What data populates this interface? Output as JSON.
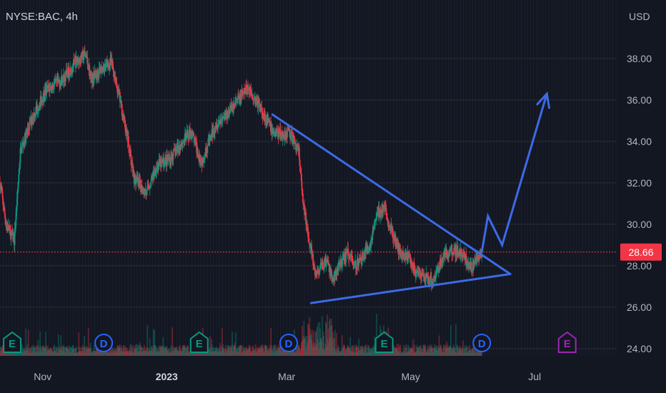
{
  "header": {
    "symbol": "NYSE:BAC, 4h",
    "currency": "USD"
  },
  "price_badge": {
    "value": "28.66",
    "color": "#f23645"
  },
  "chart_data": {
    "type": "candlestick",
    "symbol": "NYSE:BAC",
    "interval": "4h",
    "currency": "USD",
    "y_ticks": [
      24,
      26,
      28,
      30,
      32,
      34,
      36,
      38
    ],
    "ylim": [
      23.6,
      40.0
    ],
    "x_ticks": [
      {
        "label": "Nov",
        "date": "2022-11-01"
      },
      {
        "label": "2023",
        "date": "2023-01-01"
      },
      {
        "label": "Mar",
        "date": "2023-03-01"
      },
      {
        "label": "May",
        "date": "2023-05-01"
      },
      {
        "label": "Jul",
        "date": "2023-07-01"
      }
    ],
    "xlim": [
      "2022-10-11",
      "2023-08-10"
    ],
    "last_price": 28.66,
    "price_path": [
      [
        "2022-10-11",
        32.0
      ],
      [
        "2022-10-14",
        30.0
      ],
      [
        "2022-10-18",
        29.2
      ],
      [
        "2022-10-21",
        33.5
      ],
      [
        "2022-10-27",
        35.2
      ],
      [
        "2022-11-03",
        36.5
      ],
      [
        "2022-11-11",
        37.0
      ],
      [
        "2022-11-17",
        37.8
      ],
      [
        "2022-11-22",
        38.2
      ],
      [
        "2022-11-25",
        37.0
      ],
      [
        "2022-12-01",
        37.6
      ],
      [
        "2022-12-05",
        37.8
      ],
      [
        "2022-12-09",
        36.0
      ],
      [
        "2022-12-13",
        34.0
      ],
      [
        "2022-12-16",
        32.2
      ],
      [
        "2022-12-22",
        31.5
      ],
      [
        "2022-12-27",
        32.8
      ],
      [
        "2023-01-03",
        33.2
      ],
      [
        "2023-01-09",
        34.0
      ],
      [
        "2023-01-13",
        34.5
      ],
      [
        "2023-01-18",
        33.0
      ],
      [
        "2023-01-25",
        34.8
      ],
      [
        "2023-02-01",
        35.5
      ],
      [
        "2023-02-07",
        36.2
      ],
      [
        "2023-02-10",
        36.6
      ],
      [
        "2023-02-15",
        35.8
      ],
      [
        "2023-02-22",
        34.5
      ],
      [
        "2023-02-27",
        34.3
      ],
      [
        "2023-03-02",
        34.5
      ],
      [
        "2023-03-07",
        33.5
      ],
      [
        "2023-03-09",
        31.0
      ],
      [
        "2023-03-13",
        28.8
      ],
      [
        "2023-03-15",
        27.5
      ],
      [
        "2023-03-17",
        27.8
      ],
      [
        "2023-03-20",
        28.2
      ],
      [
        "2023-03-24",
        27.3
      ],
      [
        "2023-03-27",
        28.0
      ],
      [
        "2023-03-31",
        28.6
      ],
      [
        "2023-04-04",
        28.0
      ],
      [
        "2023-04-07",
        28.4
      ],
      [
        "2023-04-11",
        29.0
      ],
      [
        "2023-04-14",
        30.4
      ],
      [
        "2023-04-18",
        30.8
      ],
      [
        "2023-04-21",
        29.8
      ],
      [
        "2023-04-25",
        28.8
      ],
      [
        "2023-05-01",
        28.3
      ],
      [
        "2023-05-04",
        27.5
      ],
      [
        "2023-05-08",
        27.4
      ],
      [
        "2023-05-12",
        27.3
      ],
      [
        "2023-05-17",
        28.5
      ],
      [
        "2023-05-22",
        28.8
      ],
      [
        "2023-05-26",
        28.6
      ],
      [
        "2023-05-31",
        27.9
      ],
      [
        "2023-06-05",
        28.66
      ]
    ],
    "drawings": [
      {
        "type": "trendline",
        "color": "#3d6ae8",
        "points": [
          [
            "2023-02-22",
            35.3
          ],
          [
            "2023-06-19",
            27.6
          ]
        ]
      },
      {
        "type": "trendline",
        "color": "#3d6ae8",
        "points": [
          [
            "2023-03-13",
            26.2
          ],
          [
            "2023-06-19",
            27.6
          ]
        ]
      },
      {
        "type": "projection_path",
        "color": "#3d6ae8",
        "arrow": true,
        "points": [
          [
            "2023-06-05",
            28.66
          ],
          [
            "2023-06-08",
            30.4
          ],
          [
            "2023-06-15",
            29.0
          ],
          [
            "2023-07-07",
            36.3
          ]
        ]
      }
    ],
    "events": [
      {
        "label": "E",
        "date": "2022-10-17",
        "color": "#089981"
      },
      {
        "label": "D",
        "date": "2022-12-01",
        "color": "#2962ff"
      },
      {
        "label": "E",
        "date": "2023-01-17",
        "color": "#089981"
      },
      {
        "label": "D",
        "date": "2023-03-02",
        "color": "#2962ff"
      },
      {
        "label": "E",
        "date": "2023-04-18",
        "color": "#089981"
      },
      {
        "label": "D",
        "date": "2023-06-05",
        "color": "#2962ff"
      },
      {
        "label": "E",
        "date": "2023-07-17",
        "color": "#9c27b0"
      }
    ]
  }
}
